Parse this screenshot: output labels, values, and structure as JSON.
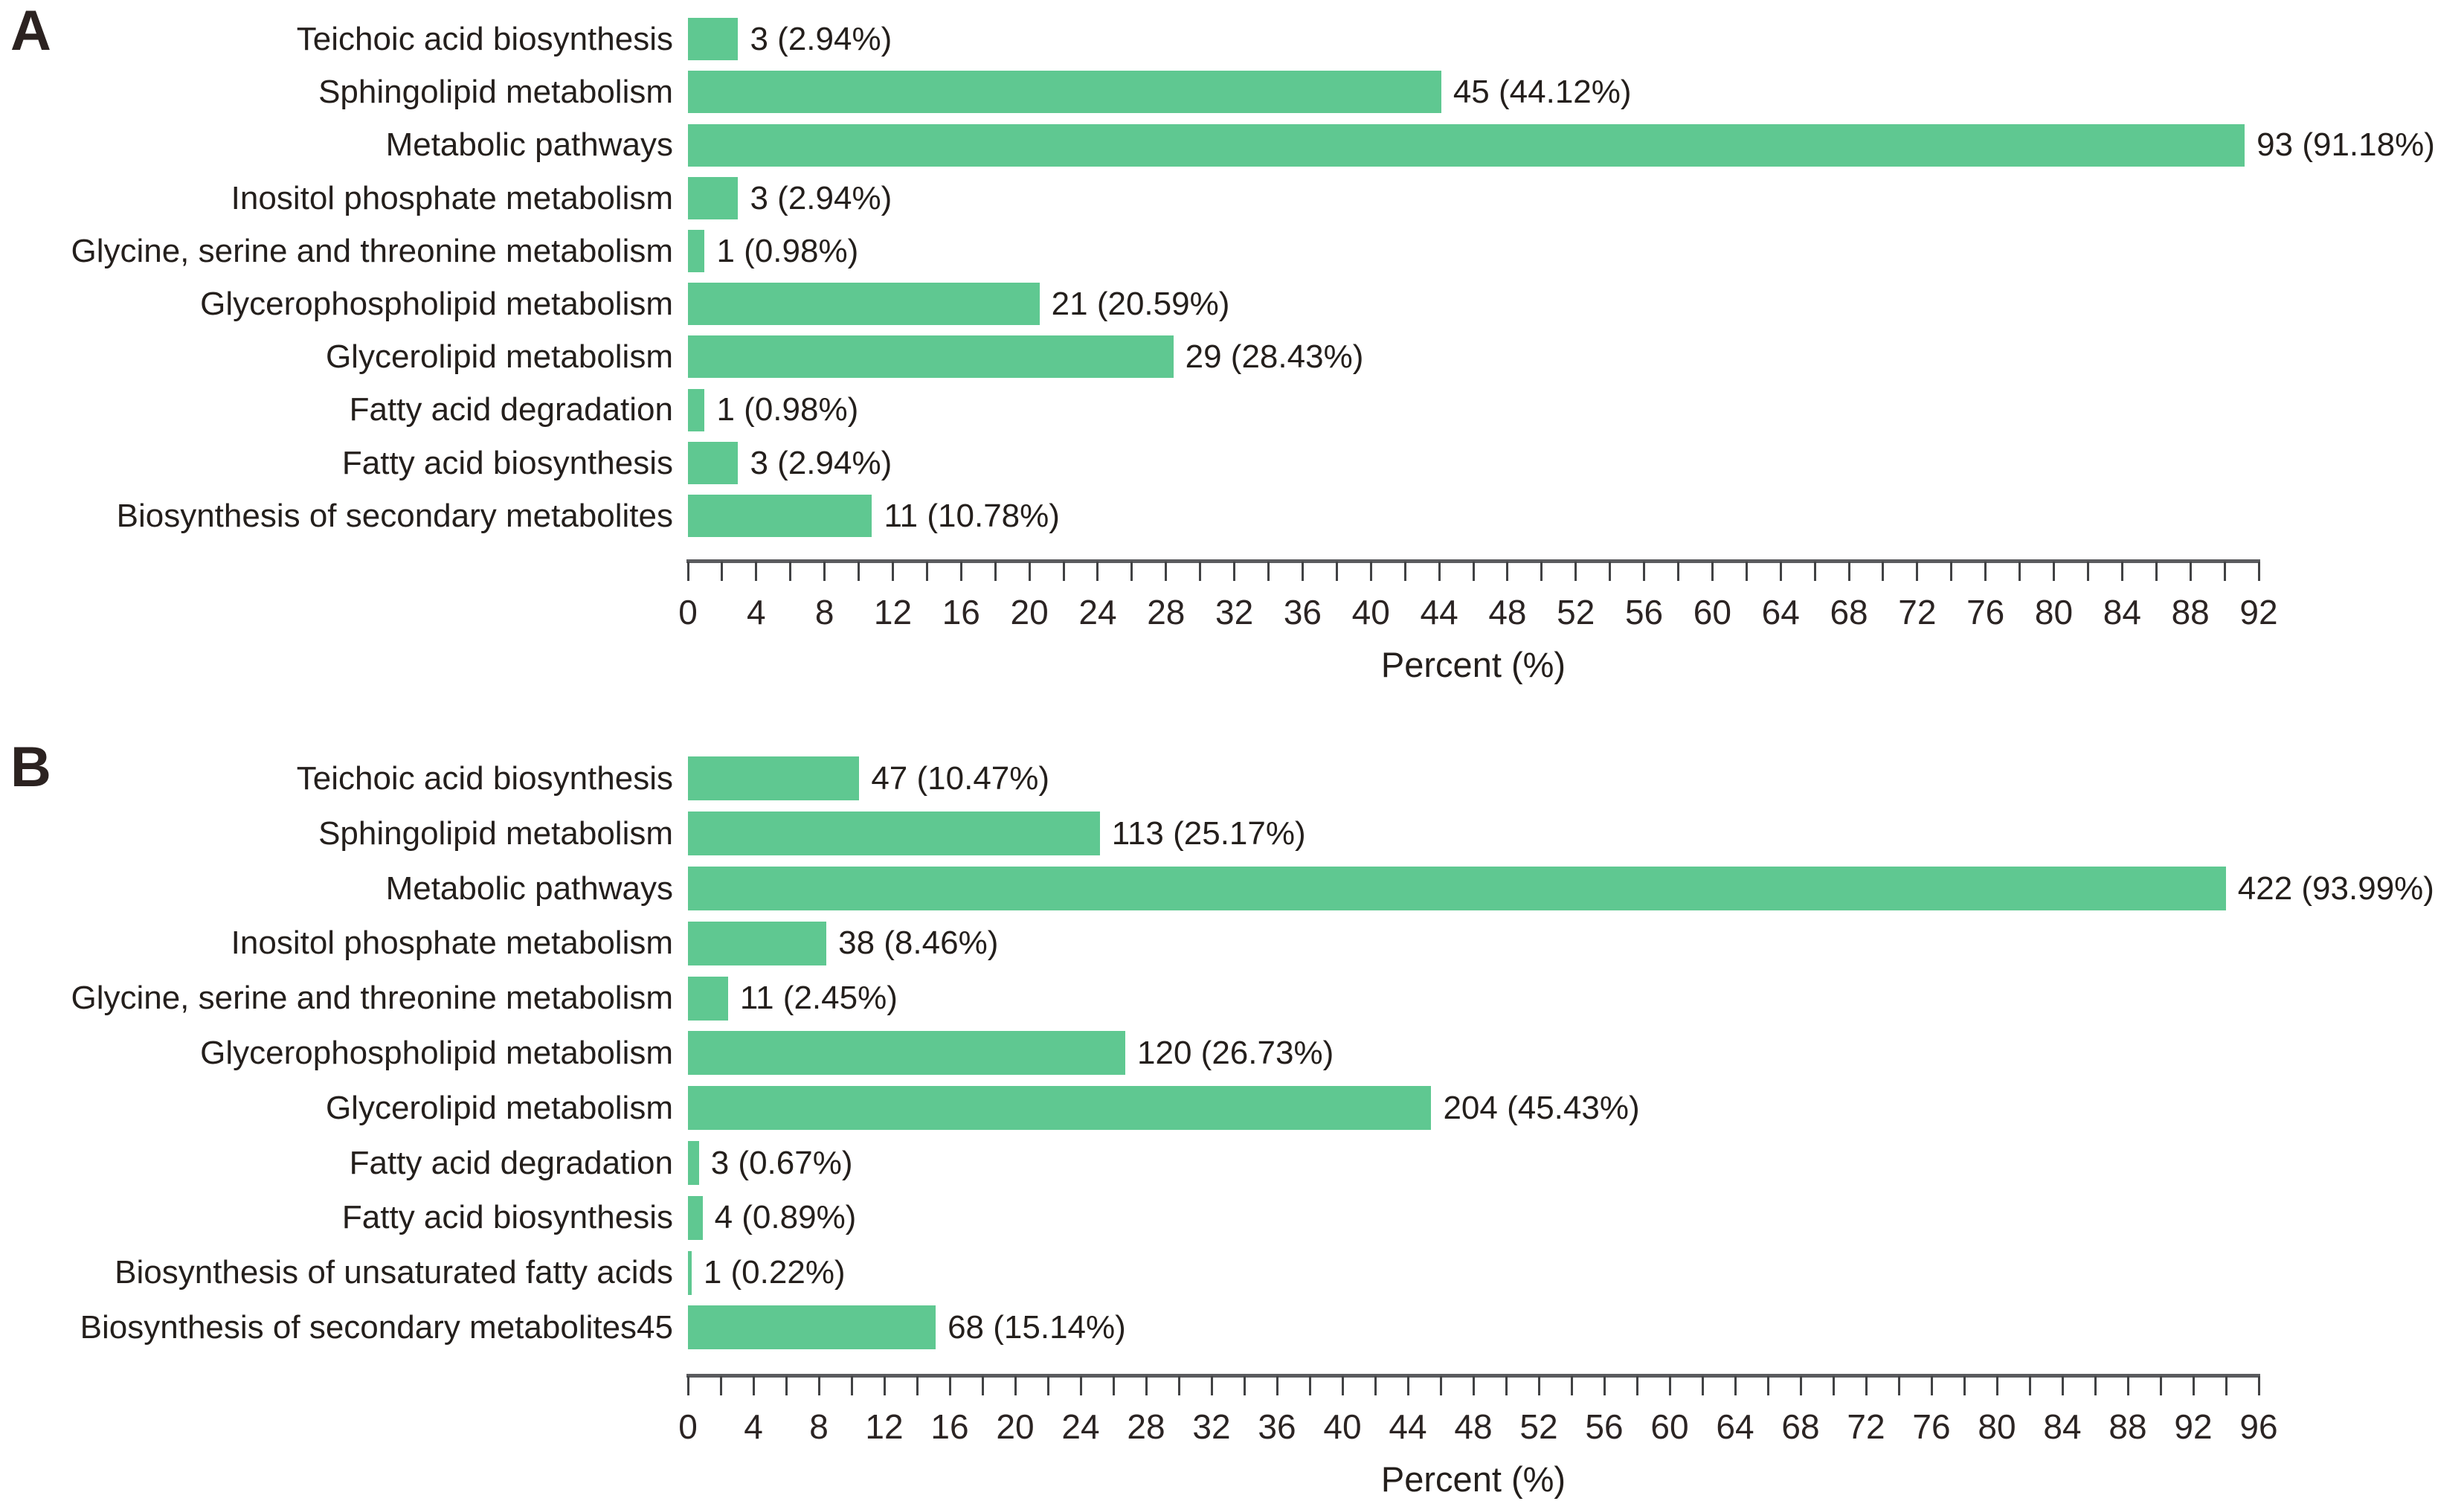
{
  "colors": {
    "bar_fill": "#5fc891",
    "text": "#241f1c",
    "axis_line": "#5a5b5e",
    "tick": "#414244",
    "background": "#ffffff"
  },
  "chart_data": [
    {
      "type": "bar",
      "orientation": "horizontal",
      "panel": "A",
      "xlabel": "Percent (%)",
      "xlim": [
        0,
        92
      ],
      "tick_minor_step": 2,
      "tick_label_step": 4,
      "grid": false,
      "legend": null,
      "categories": [
        "Teichoic acid biosynthesis",
        "Sphingolipid metabolism",
        "Metabolic pathways",
        "Inositol phosphate metabolism",
        "Glycine, serine and threonine metabolism",
        "Glycerophospholipid metabolism",
        "Glycerolipid metabolism",
        "Fatty acid degradation",
        "Fatty acid biosynthesis",
        "Biosynthesis of secondary metabolites"
      ],
      "counts": [
        3,
        45,
        93,
        3,
        1,
        21,
        29,
        1,
        3,
        11
      ],
      "percents": [
        2.94,
        44.12,
        91.18,
        2.94,
        0.98,
        20.59,
        28.43,
        0.98,
        2.94,
        10.78
      ],
      "value_labels": [
        "3 (2.94%)",
        "45 (44.12%)",
        "93 (91.18%)",
        "3 (2.94%)",
        "1 (0.98%)",
        "21 (20.59%)",
        "29 (28.43%)",
        "1 (0.98%)",
        "3 (2.94%)",
        "11 (10.78%)"
      ]
    },
    {
      "type": "bar",
      "orientation": "horizontal",
      "panel": "B",
      "xlabel": "Percent (%)",
      "xlim": [
        0,
        96
      ],
      "tick_minor_step": 2,
      "tick_label_step": 4,
      "grid": false,
      "legend": null,
      "categories": [
        "Teichoic acid biosynthesis",
        "Sphingolipid metabolism",
        "Metabolic pathways",
        "Inositol phosphate metabolism",
        "Glycine, serine and threonine metabolism",
        "Glycerophospholipid metabolism",
        "Glycerolipid metabolism",
        "Fatty acid degradation",
        "Fatty acid biosynthesis",
        "Biosynthesis of unsaturated fatty acids",
        "Biosynthesis of secondary metabolites45"
      ],
      "counts": [
        47,
        113,
        422,
        38,
        11,
        120,
        204,
        3,
        4,
        1,
        68
      ],
      "percents": [
        10.47,
        25.17,
        93.99,
        8.46,
        2.45,
        26.73,
        45.43,
        0.67,
        0.89,
        0.22,
        15.14
      ],
      "value_labels": [
        "47 (10.47%)",
        "113 (25.17%)",
        "422 (93.99%)",
        "38 (8.46%)",
        "11 (2.45%)",
        "120 (26.73%)",
        "204 (45.43%)",
        "3 (0.67%)",
        "4 (0.89%)",
        "1 (0.22%)",
        "68 (15.14%)"
      ]
    }
  ]
}
